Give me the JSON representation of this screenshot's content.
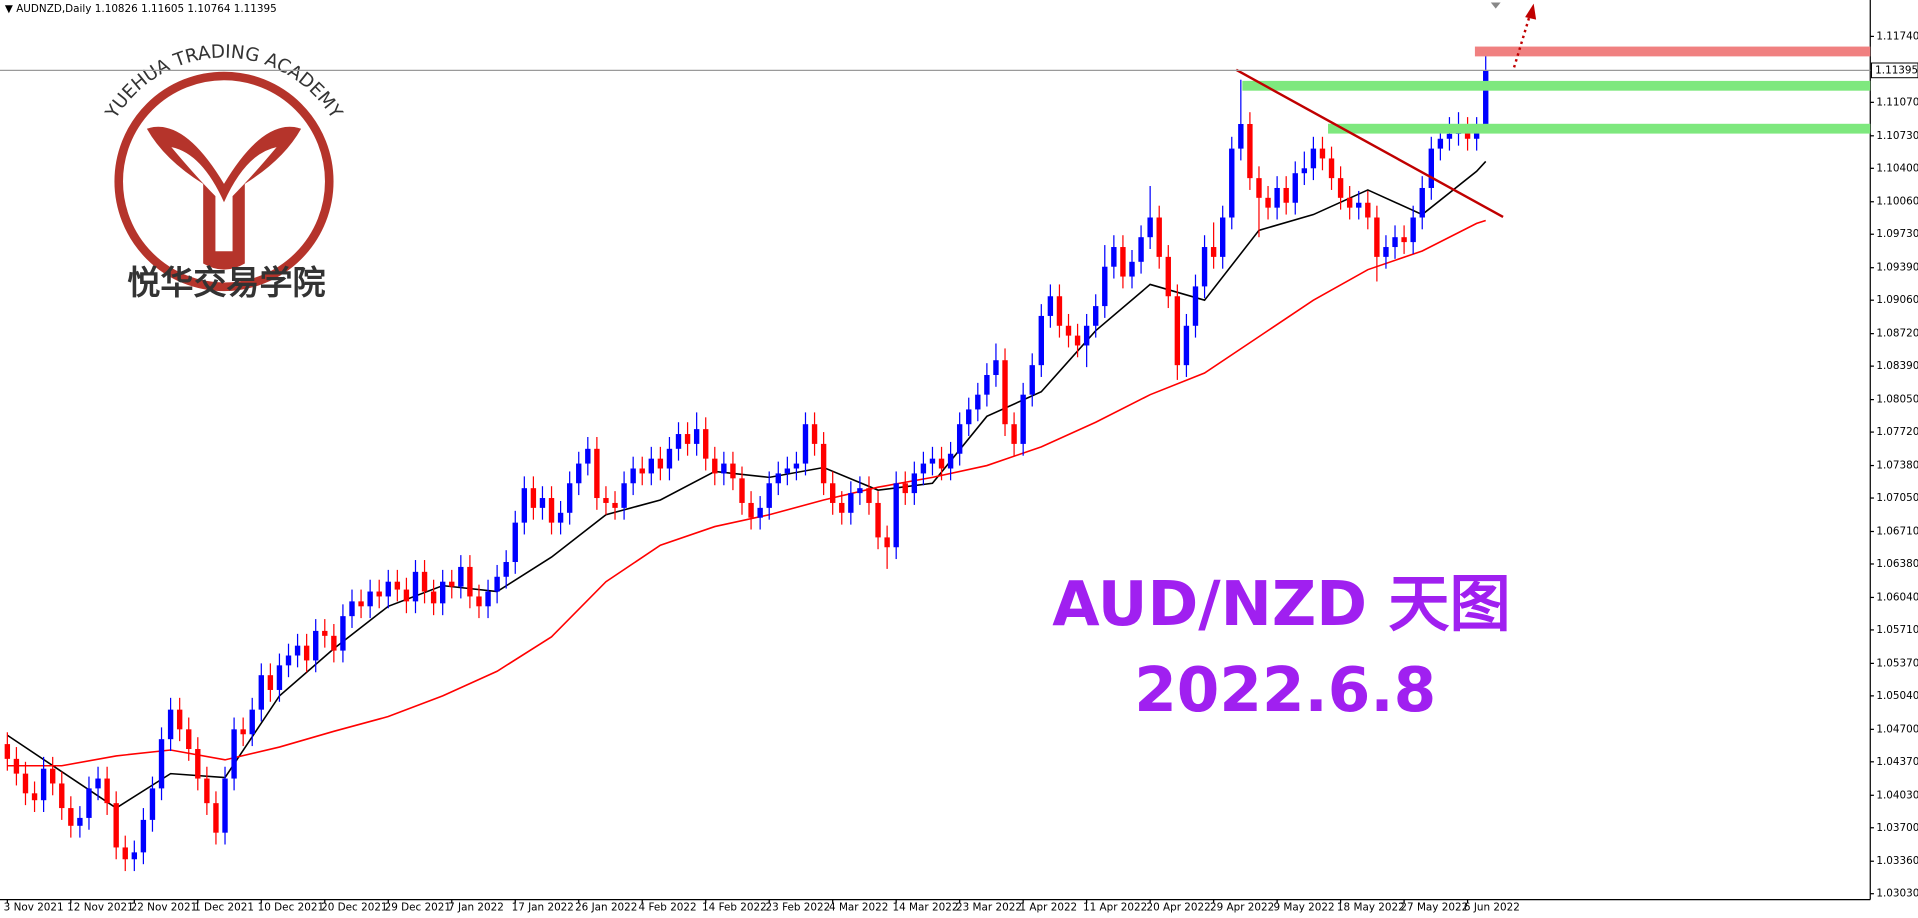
{
  "chart_data": {
    "type": "candlestick",
    "symbol": "AUDNZD,Daily",
    "up_color": "#0000ff",
    "down_color": "#ff0000",
    "ylim": [
      1.0297,
      1.1206
    ],
    "yticks": [
      {
        "value": 1.1174,
        "label": "1.11740"
      },
      {
        "value": 1.1107,
        "label": "1.11070"
      },
      {
        "value": 1.1073,
        "label": "1.10730"
      },
      {
        "value": 1.104,
        "label": "1.10400"
      },
      {
        "value": 1.1006,
        "label": "1.10060"
      },
      {
        "value": 1.0973,
        "label": "1.09730"
      },
      {
        "value": 1.0939,
        "label": "1.09390"
      },
      {
        "value": 1.0906,
        "label": "1.09060"
      },
      {
        "value": 1.0872,
        "label": "1.08720"
      },
      {
        "value": 1.0839,
        "label": "1.08390"
      },
      {
        "value": 1.0805,
        "label": "1.08050"
      },
      {
        "value": 1.0772,
        "label": "1.07720"
      },
      {
        "value": 1.0738,
        "label": "1.07380"
      },
      {
        "value": 1.0705,
        "label": "1.07050"
      },
      {
        "value": 1.0671,
        "label": "1.06710"
      },
      {
        "value": 1.0638,
        "label": "1.06380"
      },
      {
        "value": 1.0604,
        "label": "1.06040"
      },
      {
        "value": 1.0571,
        "label": "1.05710"
      },
      {
        "value": 1.0537,
        "label": "1.05370"
      },
      {
        "value": 1.0504,
        "label": "1.05040"
      },
      {
        "value": 1.047,
        "label": "1.04700"
      },
      {
        "value": 1.0437,
        "label": "1.04370"
      },
      {
        "value": 1.0403,
        "label": "1.04030"
      },
      {
        "value": 1.037,
        "label": "1.03700"
      },
      {
        "value": 1.0336,
        "label": "1.03360"
      },
      {
        "value": 1.0303,
        "label": "1.03030"
      }
    ],
    "categories": [
      "3 Nov 2021",
      null,
      null,
      null,
      null,
      null,
      null,
      "12 Nov 2021",
      null,
      null,
      null,
      null,
      null,
      null,
      "22 Nov 2021",
      null,
      null,
      null,
      null,
      null,
      null,
      "1 Dec 2021",
      null,
      null,
      null,
      null,
      null,
      null,
      "10 Dec 2021",
      null,
      null,
      null,
      null,
      null,
      null,
      "20 Dec 2021",
      null,
      null,
      null,
      null,
      null,
      null,
      "29 Dec 2021",
      null,
      null,
      null,
      null,
      null,
      null,
      "7 Jan 2022",
      null,
      null,
      null,
      null,
      null,
      null,
      "17 Jan 2022",
      null,
      null,
      null,
      null,
      null,
      null,
      "26 Jan 2022",
      null,
      null,
      null,
      null,
      null,
      null,
      "4 Feb 2022",
      null,
      null,
      null,
      null,
      null,
      null,
      "14 Feb 2022",
      null,
      null,
      null,
      null,
      null,
      null,
      "23 Feb 2022",
      null,
      null,
      null,
      null,
      null,
      null,
      "4 Mar 2022",
      null,
      null,
      null,
      null,
      null,
      null,
      "14 Mar 2022",
      null,
      null,
      null,
      null,
      null,
      null,
      "23 Mar 2022",
      null,
      null,
      null,
      null,
      null,
      null,
      "1 Apr 2022",
      null,
      null,
      null,
      null,
      null,
      null,
      "11 Apr 2022",
      null,
      null,
      null,
      null,
      null,
      null,
      "20 Apr 2022",
      null,
      null,
      null,
      null,
      null,
      null,
      "29 Apr 2022",
      null,
      null,
      null,
      null,
      null,
      null,
      "9 May 2022",
      null,
      null,
      null,
      null,
      null,
      null,
      "18 May 2022",
      null,
      null,
      null,
      null,
      null,
      null,
      "27 May 2022",
      null,
      null,
      null,
      null,
      null,
      null,
      "6 Jun 2022",
      null,
      null
    ],
    "candles": [
      [
        1.0455,
        1.0467,
        1.0428,
        1.044
      ],
      [
        1.044,
        1.0452,
        1.0413,
        1.0425
      ],
      [
        1.0425,
        1.0437,
        1.0393,
        1.0405
      ],
      [
        1.0405,
        1.0417,
        1.0386,
        1.0398
      ],
      [
        1.0398,
        1.0442,
        1.0386,
        1.043
      ],
      [
        1.043,
        1.0442,
        1.0403,
        1.0415
      ],
      [
        1.0415,
        1.0427,
        1.0378,
        1.039
      ],
      [
        1.039,
        1.0402,
        1.036,
        1.0372
      ],
      [
        1.0372,
        1.0392,
        1.036,
        1.038
      ],
      [
        1.038,
        1.0422,
        1.0368,
        1.041
      ],
      [
        1.041,
        1.0432,
        1.0398,
        1.042
      ],
      [
        1.042,
        1.0432,
        1.0383,
        1.0395
      ],
      [
        1.0395,
        1.0407,
        1.0338,
        1.035
      ],
      [
        1.035,
        1.0362,
        1.0326,
        1.0338
      ],
      [
        1.0338,
        1.0357,
        1.0326,
        1.0345
      ],
      [
        1.0345,
        1.039,
        1.0333,
        1.0378
      ],
      [
        1.0378,
        1.0422,
        1.0366,
        1.041
      ],
      [
        1.041,
        1.0472,
        1.0398,
        1.046
      ],
      [
        1.046,
        1.0502,
        1.0448,
        1.049
      ],
      [
        1.049,
        1.0502,
        1.0458,
        1.047
      ],
      [
        1.047,
        1.0482,
        1.0438,
        1.045
      ],
      [
        1.045,
        1.0462,
        1.0408,
        1.042
      ],
      [
        1.042,
        1.0432,
        1.0383,
        1.0395
      ],
      [
        1.0395,
        1.0407,
        1.0353,
        1.0365
      ],
      [
        1.0365,
        1.0432,
        1.0353,
        1.042
      ],
      [
        1.042,
        1.0482,
        1.0408,
        1.047
      ],
      [
        1.047,
        1.0482,
        1.0453,
        1.0465
      ],
      [
        1.0465,
        1.0502,
        1.0453,
        1.049
      ],
      [
        1.049,
        1.0537,
        1.0478,
        1.0525
      ],
      [
        1.0525,
        1.0537,
        1.0498,
        1.051
      ],
      [
        1.051,
        1.0547,
        1.0498,
        1.0535
      ],
      [
        1.0535,
        1.0557,
        1.0523,
        1.0545
      ],
      [
        1.0545,
        1.0567,
        1.0533,
        1.0555
      ],
      [
        1.0555,
        1.0567,
        1.0528,
        1.054
      ],
      [
        1.054,
        1.0582,
        1.0528,
        1.057
      ],
      [
        1.057,
        1.0582,
        1.0553,
        1.0565
      ],
      [
        1.0565,
        1.0577,
        1.0538,
        1.055
      ],
      [
        1.055,
        1.0597,
        1.0538,
        1.0585
      ],
      [
        1.0585,
        1.0612,
        1.0573,
        1.06
      ],
      [
        1.06,
        1.0612,
        1.0583,
        1.0595
      ],
      [
        1.0595,
        1.0622,
        1.0583,
        1.061
      ],
      [
        1.061,
        1.0622,
        1.0593,
        1.0605
      ],
      [
        1.0605,
        1.0632,
        1.0593,
        1.062
      ],
      [
        1.062,
        1.0632,
        1.06,
        1.0612
      ],
      [
        1.0612,
        1.0624,
        1.0588,
        1.06
      ],
      [
        1.06,
        1.0642,
        1.0588,
        1.063
      ],
      [
        1.063,
        1.0642,
        1.0598,
        1.061
      ],
      [
        1.061,
        1.0622,
        1.0586,
        1.0598
      ],
      [
        1.0598,
        1.0632,
        1.0586,
        1.062
      ],
      [
        1.062,
        1.0632,
        1.0603,
        1.0615
      ],
      [
        1.0615,
        1.0647,
        1.0603,
        1.0635
      ],
      [
        1.0635,
        1.0647,
        1.0593,
        1.0605
      ],
      [
        1.0605,
        1.0617,
        1.0583,
        1.0595
      ],
      [
        1.0595,
        1.0622,
        1.0583,
        1.061
      ],
      [
        1.061,
        1.0637,
        1.0598,
        1.0625
      ],
      [
        1.0625,
        1.0652,
        1.0613,
        1.064
      ],
      [
        1.064,
        1.0692,
        1.0628,
        1.068
      ],
      [
        1.068,
        1.0727,
        1.0668,
        1.0715
      ],
      [
        1.0715,
        1.0727,
        1.0683,
        1.0695
      ],
      [
        1.0695,
        1.0717,
        1.0683,
        1.0705
      ],
      [
        1.0705,
        1.0717,
        1.0668,
        1.068
      ],
      [
        1.068,
        1.0702,
        1.0668,
        1.069
      ],
      [
        1.069,
        1.0732,
        1.0678,
        1.072
      ],
      [
        1.072,
        1.0752,
        1.0708,
        1.074
      ],
      [
        1.074,
        1.0767,
        1.0728,
        1.0755
      ],
      [
        1.0755,
        1.0767,
        1.0693,
        1.0705
      ],
      [
        1.0705,
        1.0717,
        1.0688,
        1.07
      ],
      [
        1.07,
        1.0712,
        1.0683,
        1.0695
      ],
      [
        1.0695,
        1.0732,
        1.0683,
        1.072
      ],
      [
        1.072,
        1.0747,
        1.0708,
        1.0735
      ],
      [
        1.0735,
        1.0747,
        1.0718,
        1.073
      ],
      [
        1.073,
        1.0757,
        1.0718,
        1.0745
      ],
      [
        1.0745,
        1.0757,
        1.0723,
        1.0735
      ],
      [
        1.0735,
        1.0767,
        1.0723,
        1.0755
      ],
      [
        1.0755,
        1.0782,
        1.0743,
        1.077
      ],
      [
        1.077,
        1.0782,
        1.0748,
        1.076
      ],
      [
        1.076,
        1.0792,
        1.0748,
        1.0775
      ],
      [
        1.0775,
        1.0787,
        1.0733,
        1.0745
      ],
      [
        1.0745,
        1.0757,
        1.0718,
        1.073
      ],
      [
        1.073,
        1.0752,
        1.0718,
        1.074
      ],
      [
        1.074,
        1.0752,
        1.0713,
        1.0725
      ],
      [
        1.0725,
        1.0737,
        1.0688,
        1.07
      ],
      [
        1.07,
        1.0712,
        1.0673,
        1.0685
      ],
      [
        1.0685,
        1.0707,
        1.0673,
        1.0695
      ],
      [
        1.0695,
        1.0732,
        1.0683,
        1.072
      ],
      [
        1.072,
        1.0742,
        1.0708,
        1.073
      ],
      [
        1.073,
        1.0747,
        1.0718,
        1.0735
      ],
      [
        1.0735,
        1.0752,
        1.0723,
        1.074
      ],
      [
        1.074,
        1.0792,
        1.0728,
        1.078
      ],
      [
        1.078,
        1.0792,
        1.0748,
        1.076
      ],
      [
        1.076,
        1.0772,
        1.0708,
        1.072
      ],
      [
        1.072,
        1.0732,
        1.0688,
        1.07
      ],
      [
        1.07,
        1.0712,
        1.0678,
        1.069
      ],
      [
        1.069,
        1.0722,
        1.0678,
        1.071
      ],
      [
        1.071,
        1.0727,
        1.0698,
        1.0715
      ],
      [
        1.0715,
        1.0727,
        1.0688,
        1.07
      ],
      [
        1.07,
        1.0712,
        1.0653,
        1.0665
      ],
      [
        1.0665,
        1.0677,
        1.0633,
        1.0655
      ],
      [
        1.0655,
        1.0732,
        1.0643,
        1.072
      ],
      [
        1.072,
        1.0732,
        1.0698,
        1.071
      ],
      [
        1.071,
        1.0742,
        1.0698,
        1.073
      ],
      [
        1.073,
        1.0752,
        1.0718,
        1.074
      ],
      [
        1.074,
        1.0757,
        1.0728,
        1.0745
      ],
      [
        1.0745,
        1.0757,
        1.0723,
        1.0735
      ],
      [
        1.0735,
        1.0762,
        1.0723,
        1.075
      ],
      [
        1.075,
        1.0792,
        1.0738,
        1.078
      ],
      [
        1.078,
        1.0807,
        1.0768,
        1.0795
      ],
      [
        1.0795,
        1.0822,
        1.0783,
        1.081
      ],
      [
        1.081,
        1.0842,
        1.0798,
        1.083
      ],
      [
        1.083,
        1.0862,
        1.0818,
        1.0845
      ],
      [
        1.0845,
        1.0857,
        1.0768,
        1.078
      ],
      [
        1.078,
        1.0792,
        1.0748,
        1.076
      ],
      [
        1.076,
        1.0822,
        1.0748,
        1.081
      ],
      [
        1.081,
        1.0852,
        1.0798,
        1.084
      ],
      [
        1.084,
        1.0902,
        1.0828,
        1.089
      ],
      [
        1.089,
        1.0922,
        1.0878,
        1.091
      ],
      [
        1.091,
        1.0922,
        1.0868,
        1.088
      ],
      [
        1.088,
        1.0892,
        1.0858,
        1.087
      ],
      [
        1.087,
        1.0882,
        1.0848,
        1.086
      ],
      [
        1.086,
        1.0892,
        1.0838,
        1.088
      ],
      [
        1.088,
        1.0912,
        1.0868,
        1.09
      ],
      [
        1.09,
        1.0962,
        1.0888,
        1.094
      ],
      [
        1.094,
        1.0972,
        1.0928,
        1.096
      ],
      [
        1.096,
        1.0972,
        1.0918,
        1.093
      ],
      [
        1.093,
        1.0957,
        1.0918,
        1.0945
      ],
      [
        1.0945,
        1.0982,
        1.0933,
        1.097
      ],
      [
        1.097,
        1.1022,
        1.0958,
        1.099
      ],
      [
        1.099,
        1.1002,
        1.0938,
        1.095
      ],
      [
        1.095,
        1.0962,
        1.0898,
        1.091
      ],
      [
        1.091,
        1.0922,
        1.0825,
        1.084
      ],
      [
        1.084,
        1.0892,
        1.0828,
        1.088
      ],
      [
        1.088,
        1.0932,
        1.0868,
        1.092
      ],
      [
        1.092,
        1.0972,
        1.0908,
        1.096
      ],
      [
        1.096,
        1.0985,
        1.0938,
        1.095
      ],
      [
        1.095,
        1.1002,
        1.0938,
        1.099
      ],
      [
        1.099,
        1.1072,
        1.0978,
        1.106
      ],
      [
        1.106,
        1.113,
        1.1048,
        1.1085
      ],
      [
        1.1085,
        1.1097,
        1.1018,
        1.103
      ],
      [
        1.103,
        1.1042,
        1.097,
        1.101
      ],
      [
        1.101,
        1.1022,
        1.0988,
        1.1
      ],
      [
        1.1,
        1.1032,
        1.0988,
        1.102
      ],
      [
        1.102,
        1.1032,
        1.0993,
        1.1005
      ],
      [
        1.1005,
        1.1047,
        1.0993,
        1.1035
      ],
      [
        1.1035,
        1.1057,
        1.1023,
        1.104
      ],
      [
        1.104,
        1.1072,
        1.1028,
        1.106
      ],
      [
        1.106,
        1.1072,
        1.1038,
        1.105
      ],
      [
        1.105,
        1.1062,
        1.1018,
        1.103
      ],
      [
        1.103,
        1.1042,
        1.0998,
        1.101
      ],
      [
        1.101,
        1.1022,
        1.0988,
        1.1
      ],
      [
        1.1,
        1.1017,
        1.0988,
        1.1005
      ],
      [
        1.1005,
        1.1017,
        1.0978,
        1.099
      ],
      [
        1.099,
        1.1002,
        1.0925,
        1.095
      ],
      [
        1.095,
        1.0972,
        1.0938,
        1.096
      ],
      [
        1.096,
        1.0982,
        1.0948,
        1.097
      ],
      [
        1.097,
        1.0982,
        1.0953,
        1.0965
      ],
      [
        1.0965,
        1.1002,
        1.0953,
        1.099
      ],
      [
        1.099,
        1.1032,
        1.0978,
        1.102
      ],
      [
        1.102,
        1.1072,
        1.1008,
        1.106
      ],
      [
        1.106,
        1.1082,
        1.1048,
        1.107
      ],
      [
        1.107,
        1.1092,
        1.1058,
        1.1075
      ],
      [
        1.1075,
        1.1097,
        1.1063,
        1.108
      ],
      [
        1.108,
        1.1092,
        1.1058,
        1.107
      ],
      [
        1.107,
        1.1092,
        1.1058,
        1.108
      ],
      [
        1.10826,
        1.11605,
        1.10764,
        1.11395
      ]
    ],
    "ma_lines": [
      {
        "color": "#000000",
        "x": [
          0,
          6,
          12,
          18,
          24,
          30,
          36,
          42,
          48,
          54,
          60,
          66,
          72,
          78,
          84,
          90,
          96,
          102,
          108,
          114,
          120,
          126,
          132,
          138,
          144,
          150,
          156,
          162,
          163
        ],
        "values": [
          1.0464,
          1.0427,
          1.039,
          1.0425,
          1.0421,
          1.0504,
          1.0552,
          1.0595,
          1.0616,
          1.061,
          1.0645,
          1.0688,
          1.0703,
          1.0732,
          1.0726,
          1.0736,
          1.0713,
          1.072,
          1.0788,
          1.0813,
          1.0875,
          1.0922,
          1.0906,
          1.0977,
          1.0993,
          1.1018,
          1.0993,
          1.1037,
          1.1047
        ]
      },
      {
        "color": "#ff0000",
        "x": [
          0,
          6,
          12,
          18,
          24,
          30,
          36,
          42,
          48,
          54,
          60,
          66,
          72,
          78,
          84,
          90,
          96,
          102,
          108,
          114,
          120,
          126,
          132,
          138,
          144,
          150,
          156,
          162,
          163
        ],
        "values": [
          1.0433,
          1.0433,
          1.0443,
          1.0449,
          1.0439,
          1.0452,
          1.0468,
          1.0483,
          1.0504,
          1.0529,
          1.0564,
          1.062,
          1.0657,
          1.0676,
          1.0688,
          1.0703,
          1.0716,
          1.0726,
          1.0738,
          1.0757,
          1.0782,
          1.081,
          1.0832,
          1.0869,
          1.0906,
          1.0937,
          1.0956,
          1.0984,
          1.0987
        ]
      }
    ],
    "annotations": [
      "AUD/NZD 天图",
      "2022.6.8"
    ],
    "watermark": {
      "arc_text": "YUEHUA TRADING ACADEMY",
      "text": "悦华交易学院"
    }
  }
}
